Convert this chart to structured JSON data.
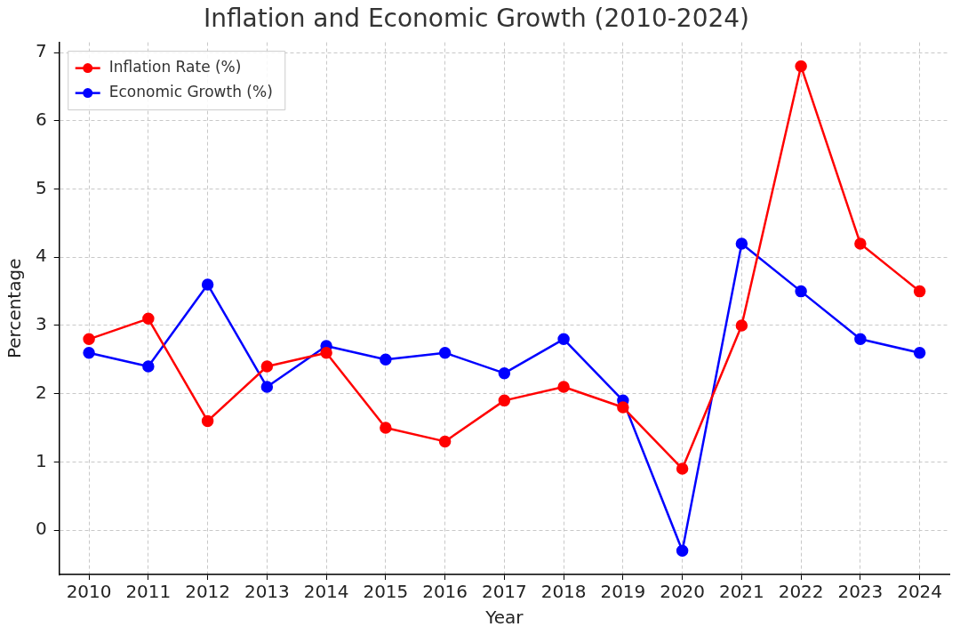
{
  "chart_data": {
    "type": "line",
    "title": "Inflation and Economic Growth (2010-2024)",
    "xlabel": "Year",
    "ylabel": "Percentage",
    "categories": [
      "2010",
      "2011",
      "2012",
      "2013",
      "2014",
      "2015",
      "2016",
      "2017",
      "2018",
      "2019",
      "2020",
      "2021",
      "2022",
      "2023",
      "2024"
    ],
    "series": [
      {
        "name": "Inflation Rate (%)",
        "color": "#ff0000",
        "values": [
          2.8,
          3.1,
          1.6,
          2.4,
          2.6,
          1.5,
          1.3,
          1.9,
          2.1,
          1.8,
          0.9,
          3.0,
          6.8,
          4.2,
          3.5
        ]
      },
      {
        "name": "Economic Growth (%)",
        "color": "#0000ff",
        "values": [
          2.6,
          2.4,
          3.6,
          2.1,
          2.7,
          2.5,
          2.6,
          2.3,
          2.8,
          1.9,
          -0.3,
          4.2,
          3.5,
          2.8,
          2.6
        ]
      }
    ],
    "ylim": [
      -0.65,
      7.15
    ],
    "yticks": [
      0,
      1,
      2,
      3,
      4,
      5,
      6,
      7
    ],
    "grid": true,
    "legend": "top left",
    "marker": "circle",
    "line_style": "solid"
  }
}
